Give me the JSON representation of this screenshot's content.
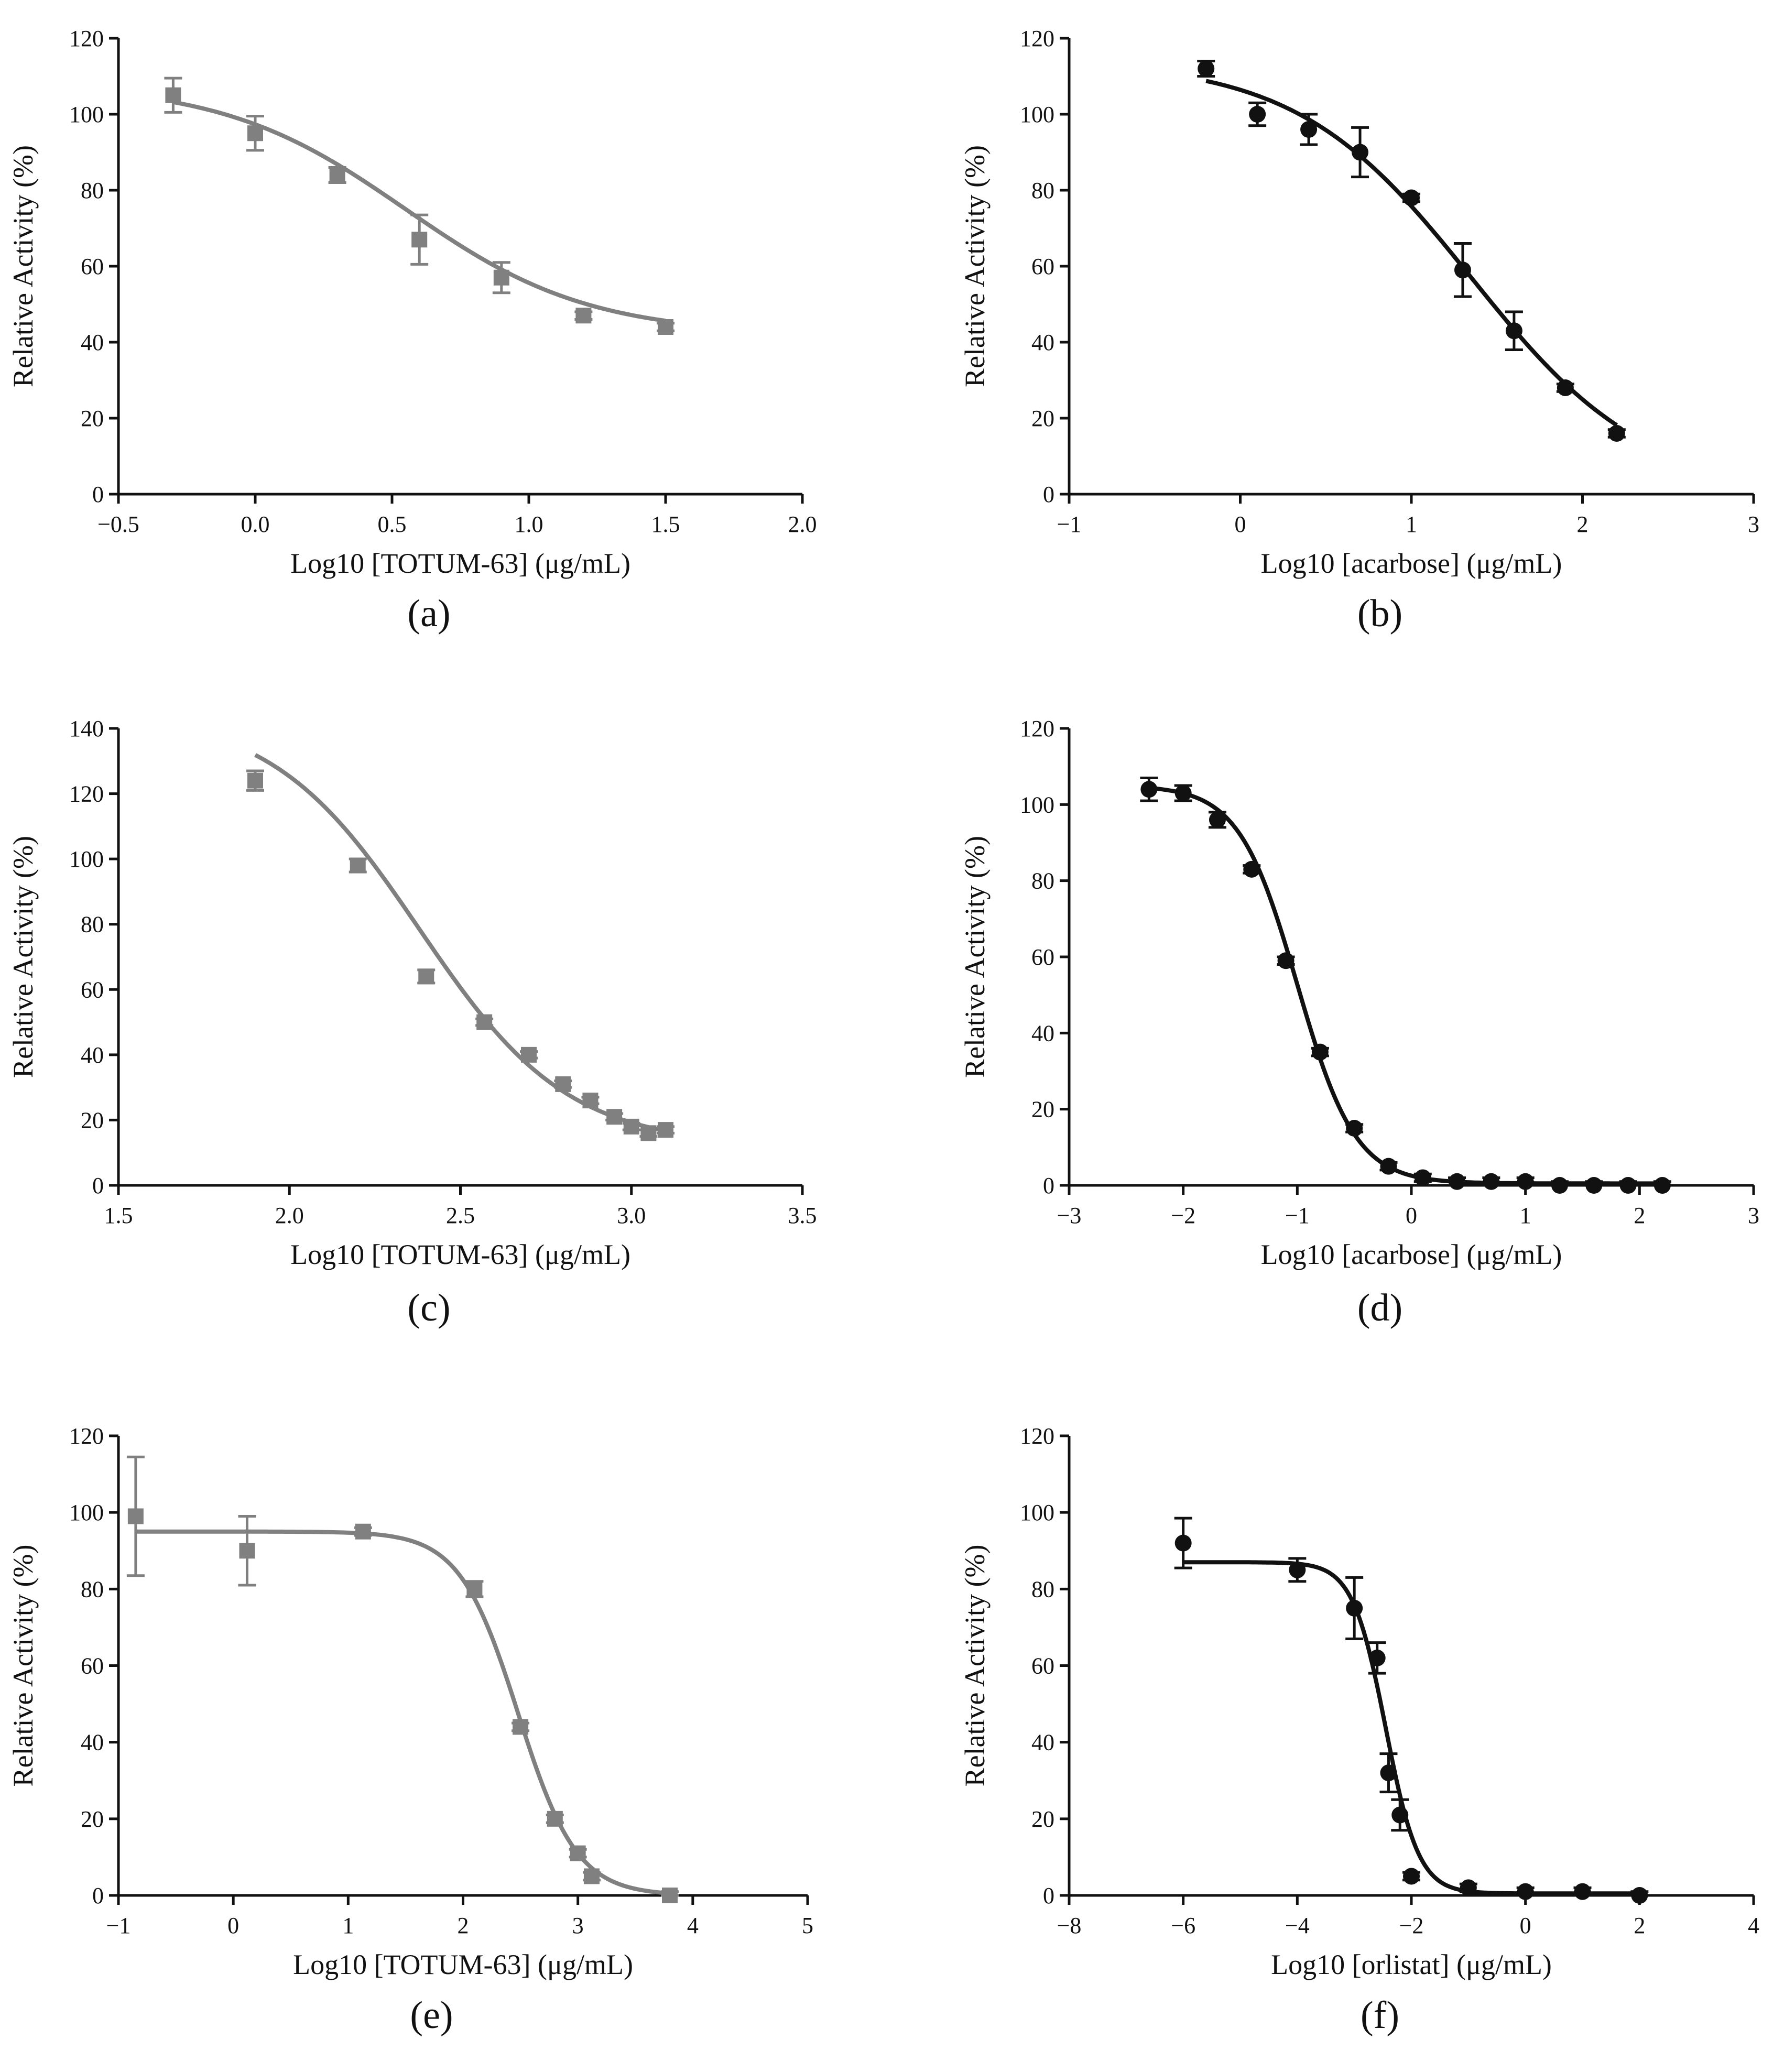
{
  "figure": {
    "panels": [
      "(a)",
      "(b)",
      "(c)",
      "(d)",
      "(e)",
      "(f)"
    ]
  },
  "colors": {
    "gray_series": "#808080",
    "black_series": "#111111"
  },
  "chart_data": [
    {
      "id": "a",
      "type": "scatter",
      "panel_label": "(a)",
      "xlabel": "Log10 [TOTUM-63] (μg/mL)",
      "ylabel": "Relative Activity (%)",
      "xlim": [
        -0.5,
        2.0
      ],
      "ylim": [
        0,
        120
      ],
      "xticks": [
        -0.5,
        0.0,
        0.5,
        1.0,
        1.5,
        2.0
      ],
      "xtick_labels": [
        "−0.5",
        "0.0",
        "0.5",
        "1.0",
        "1.5",
        "2.0"
      ],
      "yticks": [
        0,
        20,
        40,
        60,
        80,
        100,
        120
      ],
      "ytick_labels": [
        "0",
        "20",
        "40",
        "60",
        "80",
        "100",
        "120"
      ],
      "marker": "square",
      "color": "#808080",
      "fit": {
        "model": "4PL",
        "bottom": 42,
        "top": 108,
        "logEC50": 0.55,
        "hill": 1.3,
        "xrange": [
          -0.3,
          1.5
        ]
      },
      "points": [
        {
          "x": -0.3,
          "y": 105,
          "err": 4.5
        },
        {
          "x": 0.0,
          "y": 95,
          "err": 4.5
        },
        {
          "x": 0.3,
          "y": 84,
          "err": 2
        },
        {
          "x": 0.6,
          "y": 67,
          "err": 6.5
        },
        {
          "x": 0.9,
          "y": 57,
          "err": 4
        },
        {
          "x": 1.2,
          "y": 47,
          "err": 1
        },
        {
          "x": 1.5,
          "y": 44,
          "err": 1
        }
      ]
    },
    {
      "id": "b",
      "type": "scatter",
      "panel_label": "(b)",
      "xlabel": "Log10 [acarbose] (μg/mL)",
      "ylabel": "Relative Activity (%)",
      "xlim": [
        -1,
        3
      ],
      "ylim": [
        0,
        120
      ],
      "xticks": [
        -1,
        0,
        1,
        2,
        3
      ],
      "xtick_labels": [
        "−1",
        "0",
        "1",
        "2",
        "3"
      ],
      "yticks": [
        0,
        20,
        40,
        60,
        80,
        100,
        120
      ],
      "ytick_labels": [
        "0",
        "20",
        "40",
        "60",
        "80",
        "100",
        "120"
      ],
      "marker": "circle",
      "color": "#111111",
      "fit": {
        "model": "4PL",
        "bottom": 0,
        "top": 114,
        "logEC50": 1.35,
        "hill": 0.85,
        "xrange": [
          -0.2,
          2.2
        ]
      },
      "points": [
        {
          "x": -0.2,
          "y": 112,
          "err": 2
        },
        {
          "x": 0.1,
          "y": 100,
          "err": 3
        },
        {
          "x": 0.4,
          "y": 96,
          "err": 4
        },
        {
          "x": 0.7,
          "y": 90,
          "err": 6.5
        },
        {
          "x": 1.0,
          "y": 78,
          "err": 1
        },
        {
          "x": 1.3,
          "y": 59,
          "err": 7
        },
        {
          "x": 1.6,
          "y": 43,
          "err": 5
        },
        {
          "x": 1.9,
          "y": 28,
          "err": 1
        },
        {
          "x": 2.2,
          "y": 16,
          "err": 1
        }
      ]
    },
    {
      "id": "c",
      "type": "scatter",
      "panel_label": "(c)",
      "xlabel": "Log10 [TOTUM-63] (μg/mL)",
      "ylabel": "Relative Activity (%)",
      "xlim": [
        1.5,
        3.5
      ],
      "ylim": [
        0,
        140
      ],
      "xticks": [
        1.5,
        2.0,
        2.5,
        3.0,
        3.5
      ],
      "xtick_labels": [
        "1.5",
        "2.0",
        "2.5",
        "3.0",
        "3.5"
      ],
      "yticks": [
        0,
        20,
        40,
        60,
        80,
        100,
        120,
        140
      ],
      "ytick_labels": [
        "0",
        "20",
        "40",
        "60",
        "80",
        "100",
        "120",
        "140"
      ],
      "marker": "square",
      "color": "#808080",
      "fit": {
        "model": "4PL",
        "bottom": 12,
        "top": 145,
        "logEC50": 2.38,
        "hill": 2.0,
        "xrange": [
          1.9,
          3.1
        ]
      },
      "points": [
        {
          "x": 1.9,
          "y": 124,
          "err": 3
        },
        {
          "x": 2.2,
          "y": 98,
          "err": 2
        },
        {
          "x": 2.4,
          "y": 64,
          "err": 2
        },
        {
          "x": 2.57,
          "y": 50,
          "err": 1
        },
        {
          "x": 2.7,
          "y": 40,
          "err": 1
        },
        {
          "x": 2.8,
          "y": 31,
          "err": 1
        },
        {
          "x": 2.88,
          "y": 26,
          "err": 1
        },
        {
          "x": 2.95,
          "y": 21,
          "err": 1
        },
        {
          "x": 3.0,
          "y": 18,
          "err": 1
        },
        {
          "x": 3.05,
          "y": 16,
          "err": 1
        },
        {
          "x": 3.1,
          "y": 17,
          "err": 1
        }
      ]
    },
    {
      "id": "d",
      "type": "scatter",
      "panel_label": "(d)",
      "xlabel": "Log10 [acarbose] (μg/mL)",
      "ylabel": "Relative Activity (%)",
      "xlim": [
        -3,
        3
      ],
      "ylim": [
        0,
        120
      ],
      "xticks": [
        -3,
        -2,
        -1,
        0,
        1,
        2,
        3
      ],
      "xtick_labels": [
        "−3",
        "−2",
        "−1",
        "0",
        "1",
        "2",
        "3"
      ],
      "yticks": [
        0,
        20,
        40,
        60,
        80,
        100,
        120
      ],
      "ytick_labels": [
        "0",
        "20",
        "40",
        "60",
        "80",
        "100",
        "120"
      ],
      "marker": "circle",
      "color": "#111111",
      "fit": {
        "model": "4PL",
        "bottom": 0.5,
        "top": 105,
        "logEC50": -1.0,
        "hill": 1.7,
        "xrange": [
          -2.3,
          2.2
        ]
      },
      "points": [
        {
          "x": -2.3,
          "y": 104,
          "err": 3
        },
        {
          "x": -2.0,
          "y": 103,
          "err": 2
        },
        {
          "x": -1.7,
          "y": 96,
          "err": 2
        },
        {
          "x": -1.4,
          "y": 83,
          "err": 1
        },
        {
          "x": -1.1,
          "y": 59,
          "err": 1
        },
        {
          "x": -0.8,
          "y": 35,
          "err": 1
        },
        {
          "x": -0.5,
          "y": 15,
          "err": 1
        },
        {
          "x": -0.2,
          "y": 5,
          "err": 1
        },
        {
          "x": 0.1,
          "y": 2,
          "err": 1
        },
        {
          "x": 0.4,
          "y": 1,
          "err": 1
        },
        {
          "x": 0.7,
          "y": 1,
          "err": 1
        },
        {
          "x": 1.0,
          "y": 1,
          "err": 1
        },
        {
          "x": 1.3,
          "y": 0,
          "err": 1
        },
        {
          "x": 1.6,
          "y": 0,
          "err": 1
        },
        {
          "x": 1.9,
          "y": 0,
          "err": 1
        },
        {
          "x": 2.2,
          "y": 0,
          "err": 1
        }
      ]
    },
    {
      "id": "e",
      "type": "scatter",
      "panel_label": "(e)",
      "xlabel": "Log10 [TOTUM-63] (μg/mL)",
      "ylabel": "Relative Activity (%)",
      "xlim": [
        -1,
        5
      ],
      "ylim": [
        0,
        120
      ],
      "xticks": [
        -1,
        0,
        1,
        2,
        3,
        4,
        5
      ],
      "xtick_labels": [
        "−1",
        "0",
        "1",
        "2",
        "3",
        "4",
        "5"
      ],
      "yticks": [
        0,
        20,
        40,
        60,
        80,
        100,
        120
      ],
      "ytick_labels": [
        "0",
        "20",
        "40",
        "60",
        "80",
        "100",
        "120"
      ],
      "marker": "square",
      "color": "#808080",
      "fit": {
        "model": "4PL",
        "bottom": 0,
        "top": 95,
        "logEC50": 2.48,
        "hill": 1.7,
        "xrange": [
          -0.85,
          3.8
        ]
      },
      "points": [
        {
          "x": -0.85,
          "y": 99,
          "err": 15.5
        },
        {
          "x": 0.12,
          "y": 90,
          "err": 9
        },
        {
          "x": 1.13,
          "y": 95,
          "err": 1
        },
        {
          "x": 2.1,
          "y": 80,
          "err": 2
        },
        {
          "x": 2.5,
          "y": 44,
          "err": 1
        },
        {
          "x": 2.8,
          "y": 20,
          "err": 1
        },
        {
          "x": 3.0,
          "y": 11,
          "err": 1
        },
        {
          "x": 3.12,
          "y": 5,
          "err": 1
        },
        {
          "x": 3.8,
          "y": 0,
          "err": 1
        }
      ]
    },
    {
      "id": "f",
      "type": "scatter",
      "panel_label": "(f)",
      "xlabel": "Log10 [orlistat] (μg/mL)",
      "ylabel": "Relative Activity (%)",
      "xlim": [
        -8,
        4
      ],
      "ylim": [
        0,
        120
      ],
      "xticks": [
        -8,
        -6,
        -4,
        -2,
        0,
        2,
        4
      ],
      "xtick_labels": [
        "−8",
        "−6",
        "−4",
        "−2",
        "0",
        "2",
        "4"
      ],
      "yticks": [
        0,
        20,
        40,
        60,
        80,
        100,
        120
      ],
      "ytick_labels": [
        "0",
        "20",
        "40",
        "60",
        "80",
        "100",
        "120"
      ],
      "marker": "circle",
      "color": "#111111",
      "fit": {
        "model": "4PL",
        "bottom": 0.5,
        "top": 87,
        "logEC50": -2.45,
        "hill": 1.5,
        "xrange": [
          -6,
          2
        ]
      },
      "points": [
        {
          "x": -6.0,
          "y": 92,
          "err": 6.5
        },
        {
          "x": -4.0,
          "y": 85,
          "err": 3
        },
        {
          "x": -3.0,
          "y": 75,
          "err": 8
        },
        {
          "x": -2.6,
          "y": 62,
          "err": 4
        },
        {
          "x": -2.4,
          "y": 32,
          "err": 5
        },
        {
          "x": -2.2,
          "y": 21,
          "err": 4
        },
        {
          "x": -2.0,
          "y": 5,
          "err": 1
        },
        {
          "x": -1.0,
          "y": 2,
          "err": 1
        },
        {
          "x": 0.0,
          "y": 1,
          "err": 1
        },
        {
          "x": 1.0,
          "y": 1,
          "err": 1
        },
        {
          "x": 2.0,
          "y": 0,
          "err": 1
        }
      ]
    }
  ]
}
